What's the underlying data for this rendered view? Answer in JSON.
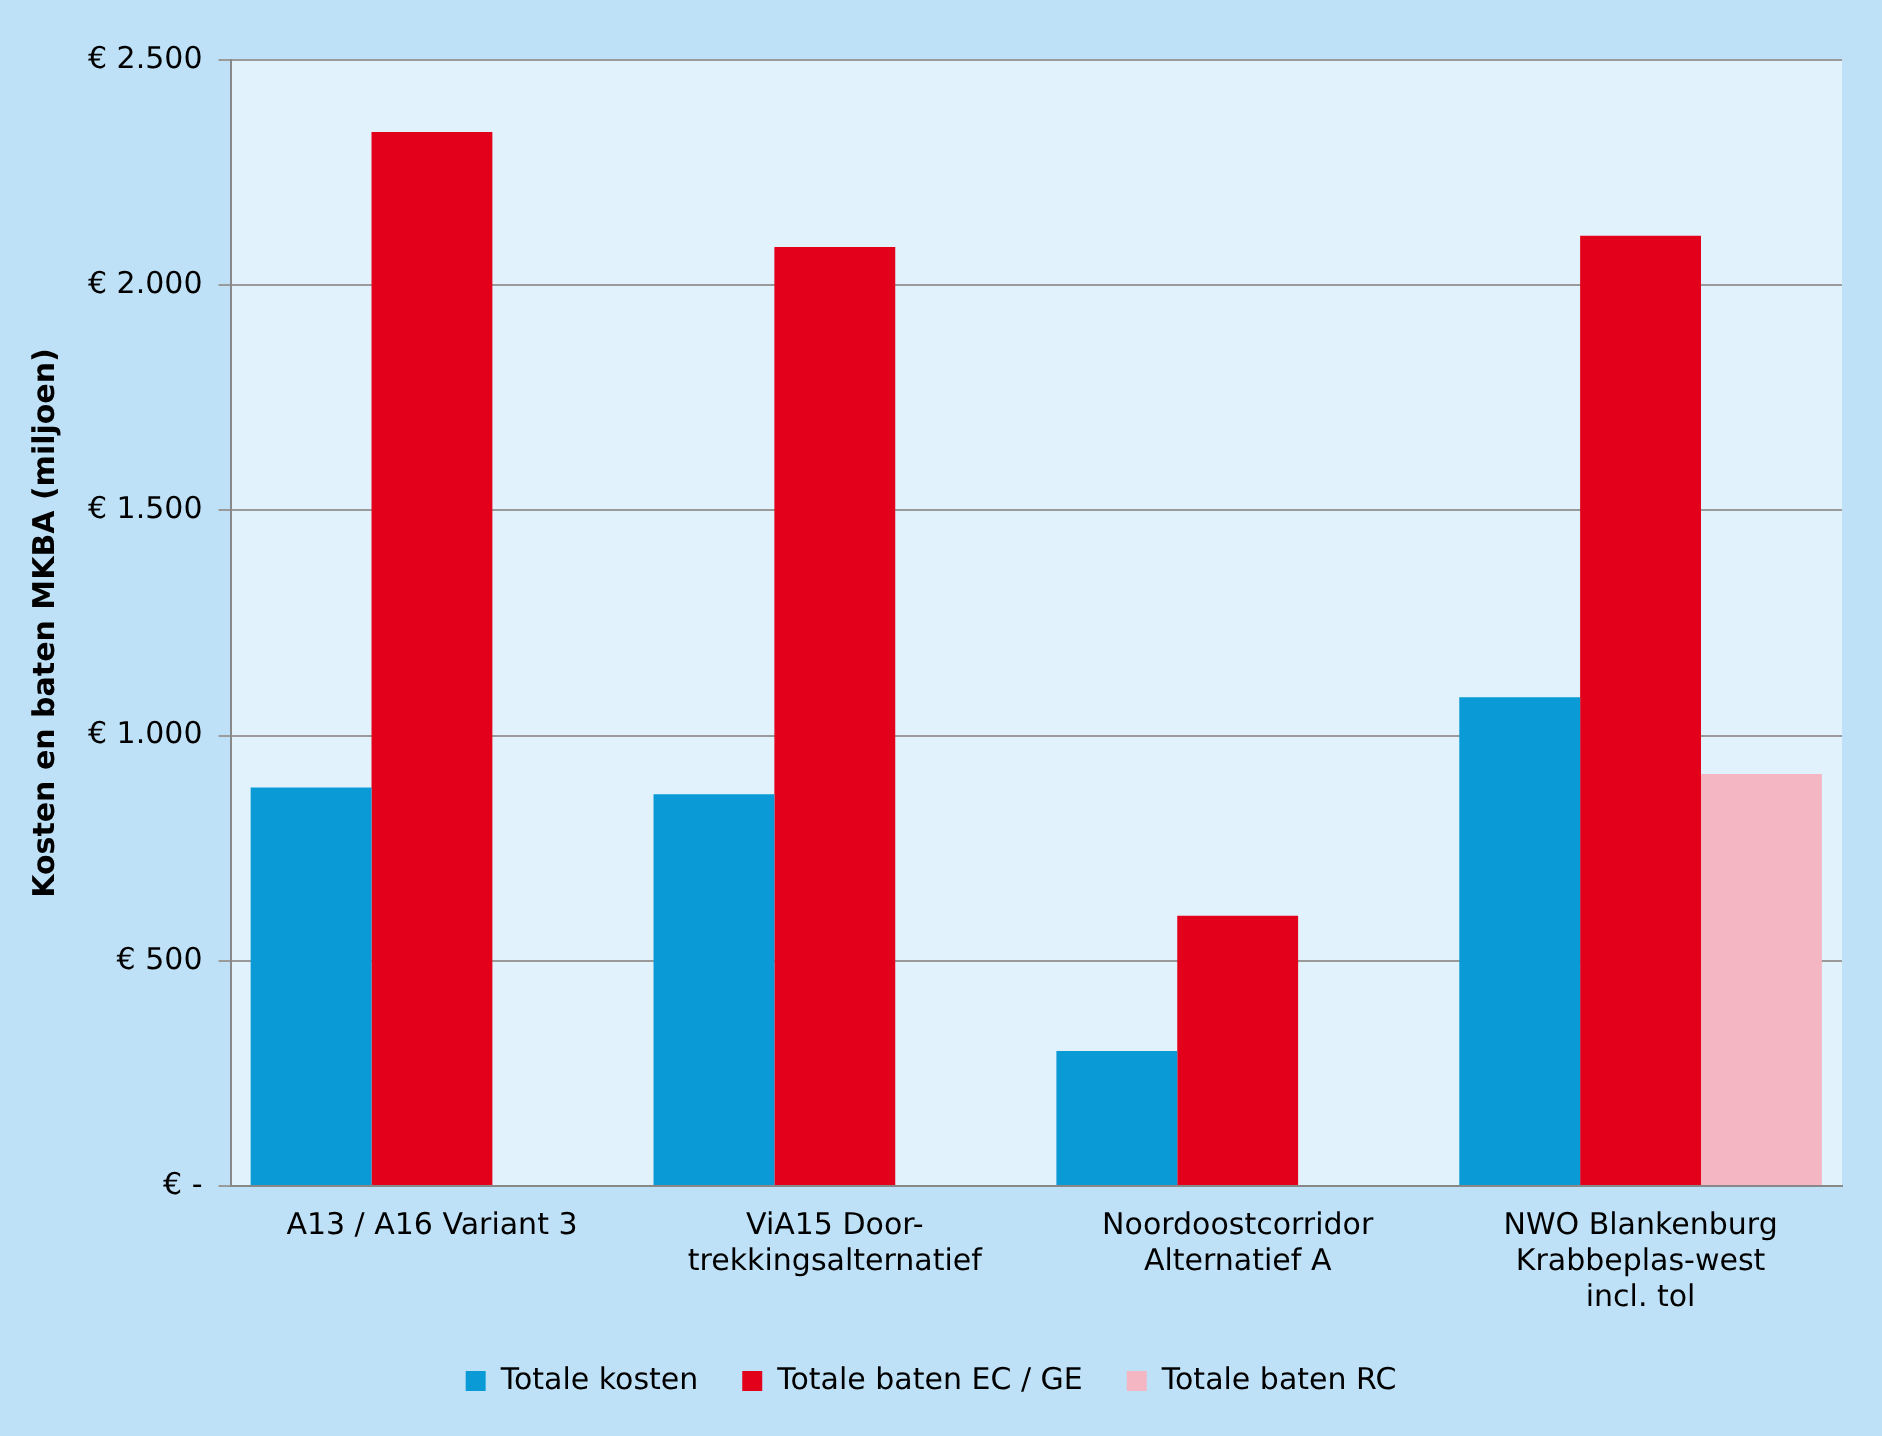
{
  "chart_data": {
    "type": "bar",
    "ylabel": "Kosten en baten MKBA (miljoen)",
    "categories": [
      "A13 / A16 Variant 3",
      "ViA15 Door-\ntrekkingsalternatief",
      "Noordoostcorridor\nAlternatief A",
      "NWO Blankenburg\nKrabbeplas-west\nincl. tol"
    ],
    "series": [
      {
        "name": "Totale kosten",
        "color": "#0a9bd6",
        "values": [
          885,
          870,
          300,
          1085
        ]
      },
      {
        "name": "Totale baten EC / GE",
        "color": "#e2001a",
        "values": [
          2340,
          2085,
          600,
          2110
        ]
      },
      {
        "name": "Totale baten RC",
        "color": "#f4b6c2",
        "values": [
          null,
          null,
          null,
          915
        ]
      }
    ],
    "ylim": [
      0,
      2500
    ],
    "yticks": [
      {
        "value": 0,
        "label": "€ -"
      },
      {
        "value": 500,
        "label": "€ 500"
      },
      {
        "value": 1000,
        "label": "€ 1.000"
      },
      {
        "value": 1500,
        "label": "€ 1.500"
      },
      {
        "value": 2000,
        "label": "€ 2.000"
      },
      {
        "value": 2500,
        "label": "€ 2.500"
      }
    ],
    "grid": "y",
    "legend": "bottom"
  }
}
